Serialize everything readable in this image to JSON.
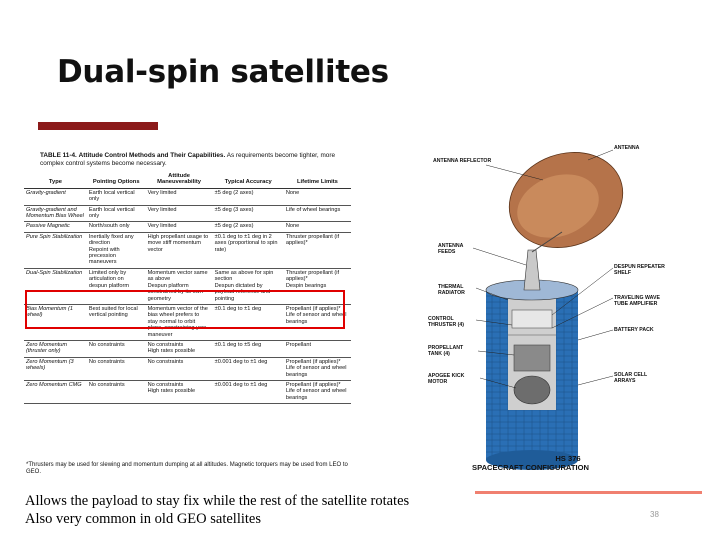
{
  "slide": {
    "title": "Dual-spin satellites",
    "caption_line1": "Allows the payload to stay fix while the rest of the satellite rotates",
    "caption_line2": "Also very common in old GEO satellites",
    "page_number": "38",
    "accent_color": "#8b1a1a",
    "highlight_color": "#e00000"
  },
  "table": {
    "caption_label": "TABLE 11-4.",
    "caption_title": "Attitude Control Methods and Their Capabilities.",
    "caption_text": "As requirements become tighter, more complex control systems become necessary.",
    "headers": [
      "Type",
      "Pointing Options",
      "Attitude Maneuverability",
      "Typical Accuracy",
      "Lifetime Limits"
    ],
    "rows": [
      {
        "type": "Gravity-gradient",
        "pointing": "Earth local vertical only",
        "maneuver": "Very limited",
        "accuracy": "±5 deg (2 axes)",
        "lifetime": "None"
      },
      {
        "type": "Gravity-gradient and Momentum Bias Wheel",
        "pointing": "Earth local vertical only",
        "maneuver": "Very limited",
        "accuracy": "±5 deg (3 axes)",
        "lifetime": "Life of wheel bearings"
      },
      {
        "type": "Passive Magnetic",
        "pointing": "North/south only",
        "maneuver": "Very limited",
        "accuracy": "±5 deg (2 axes)",
        "lifetime": "None"
      },
      {
        "type": "Pure Spin Stabilization",
        "pointing": "Inertially fixed any direction\nRepoint with precession maneuvers",
        "maneuver": "High propellant usage to move stiff momentum vector",
        "accuracy": "±0.1 deg to ±1 deg in 2 axes (proportional to spin rate)",
        "lifetime": "Thruster propellant (if applies)*"
      },
      {
        "type": "Dual-Spin Stabilization",
        "pointing": "Limited only by articulation on despun platform",
        "maneuver": "Momentum vector same as above\nDespun platform constrained by its own geometry",
        "accuracy": "Same as above for spin section\nDespun dictated by payload reference and pointing",
        "lifetime": "Thruster propellant (if applies)*\nDespin bearings"
      },
      {
        "type": "Bias Momentum (1 wheel)",
        "pointing": "Best suited for local vertical pointing",
        "maneuver": "Momentum vector of the bias wheel prefers to stay normal to orbit plane, constraining yaw maneuver",
        "accuracy": "±0.1 deg to ±1 deg",
        "lifetime": "Propellant (if applies)*\nLife of sensor and wheel bearings"
      },
      {
        "type": "Zero Momentum (thruster only)",
        "pointing": "No constraints",
        "maneuver": "No constraints\nHigh rates possible",
        "accuracy": "±0.1 deg to ±5 deg",
        "lifetime": "Propellant"
      },
      {
        "type": "Zero Momentum (3 wheels)",
        "pointing": "No constraints",
        "maneuver": "No constraints",
        "accuracy": "±0.001 deg to ±1 deg",
        "lifetime": "Propellant (if applies)*\nLife of sensor and wheel bearings"
      },
      {
        "type": "Zero Momentum CMG",
        "pointing": "No constraints",
        "maneuver": "No constraints\nHigh rates possible",
        "accuracy": "±0.001 deg to ±1 deg",
        "lifetime": "Propellant (if applies)*\nLife of sensor and wheel bearings"
      }
    ],
    "footnote": "*Thrusters may be used for slewing and momentum dumping at all altitudes. Magnetic torquers may be used from LEO to GEO."
  },
  "diagram": {
    "labels_left": [
      "ANTENNA REFLECTOR",
      "ANTENNA FEEDS",
      "THERMAL RADIATOR",
      "CONTROL THRUSTER (4)",
      "PROPELLANT TANK (4)",
      "APOGEE KICK MOTOR"
    ],
    "labels_right": [
      "ANTENNA",
      "DESPUN REPEATER SHELF",
      "TRAVELING WAVE TUBE AMPLIFIER",
      "BATTERY PACK",
      "SOLAR CELL ARRAYS"
    ],
    "title_line1": "HS 376",
    "title_line2": "SPACECRAFT CONFIGURATION",
    "body_color": "#2a6fb5",
    "dish_color": "#b5734a"
  }
}
